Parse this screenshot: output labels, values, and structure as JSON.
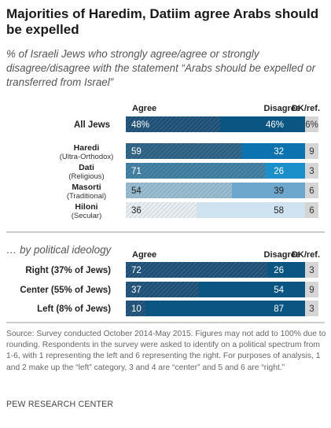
{
  "title": "Majorities of Haredim, Datiim agree Arabs should be expelled",
  "subtitle": "% of Israeli Jews who strongly agree/agree or strongly disagree/disagree with the statement “Arabs should be expelled or transferred from Israel”",
  "source": "Source: Survey conducted October 2014-May 2015. Figures may not add to 100% due to rounding. Respondents in the survey were asked to identify on a political spectrum from 1-6, with 1 representing the left and 6 representing the right. For purposes of analysis, 1 and 2 make up the “left” category, 3 and 4 are “center” and 5 and 6 are “right.”",
  "credit": "PEW RESEARCH CENTER",
  "chart_data": [
    {
      "type": "bar",
      "orientation": "horizontal",
      "stacked": true,
      "column_headers": [
        "Agree",
        "Disagree",
        "DK/ref."
      ],
      "rows": [
        {
          "label": "All Jews",
          "sublabel": "",
          "agree": 48,
          "disagree": 46,
          "dk": 6,
          "agree_text": "48%",
          "disagree_text": "46%",
          "dk_text": "6%"
        },
        {
          "label": "Haredi",
          "sublabel": "(Ultra-Orthodox)",
          "agree": 59,
          "disagree": 32,
          "dk": 9,
          "agree_text": "59",
          "disagree_text": "32",
          "dk_text": "9"
        },
        {
          "label": "Dati",
          "sublabel": "(Religious)",
          "agree": 71,
          "disagree": 26,
          "dk": 3,
          "agree_text": "71",
          "disagree_text": "26",
          "dk_text": "3"
        },
        {
          "label": "Masorti",
          "sublabel": "(Traditional)",
          "agree": 54,
          "disagree": 39,
          "dk": 6,
          "agree_text": "54",
          "disagree_text": "39",
          "dk_text": "6"
        },
        {
          "label": "Hiloni",
          "sublabel": "(Secular)",
          "agree": 36,
          "disagree": 58,
          "dk": 6,
          "agree_text": "36",
          "disagree_text": "58",
          "dk_text": "6"
        }
      ],
      "colors": {
        "all_agree": "#1f4f74",
        "all_disagree": "#0a5582",
        "haredi_agree": "#2c5f80",
        "haredi_disagree": "#0d72b0",
        "dati_agree": "#3e7a9c",
        "dati_disagree": "#1b8fc9",
        "masorti_agree": "#8fb3c8",
        "masorti_disagree": "#6da7cd",
        "hiloni_agree": "#d4e1ea",
        "hiloni_disagree": "#cfe2ef",
        "dk": "#d5d5d5"
      }
    },
    {
      "type": "bar",
      "orientation": "horizontal",
      "stacked": true,
      "section_title": "… by political ideology",
      "column_headers": [
        "Agree",
        "Disagree",
        "DK/ref."
      ],
      "rows": [
        {
          "label": "Right (37% of Jews)",
          "agree": 72,
          "disagree": 26,
          "dk": 3,
          "agree_text": "72",
          "disagree_text": "26",
          "dk_text": "3"
        },
        {
          "label": "Center (55% of Jews)",
          "agree": 37,
          "disagree": 54,
          "dk": 9,
          "agree_text": "37",
          "disagree_text": "54",
          "dk_text": "9"
        },
        {
          "label": "Left (8% of Jews)",
          "agree": 10,
          "disagree": 87,
          "dk": 3,
          "agree_text": "10",
          "disagree_text": "87",
          "dk_text": "3"
        }
      ],
      "colors": {
        "agree": "#1f4f74",
        "disagree": "#0a5582",
        "dk": "#d5d5d5"
      }
    }
  ]
}
